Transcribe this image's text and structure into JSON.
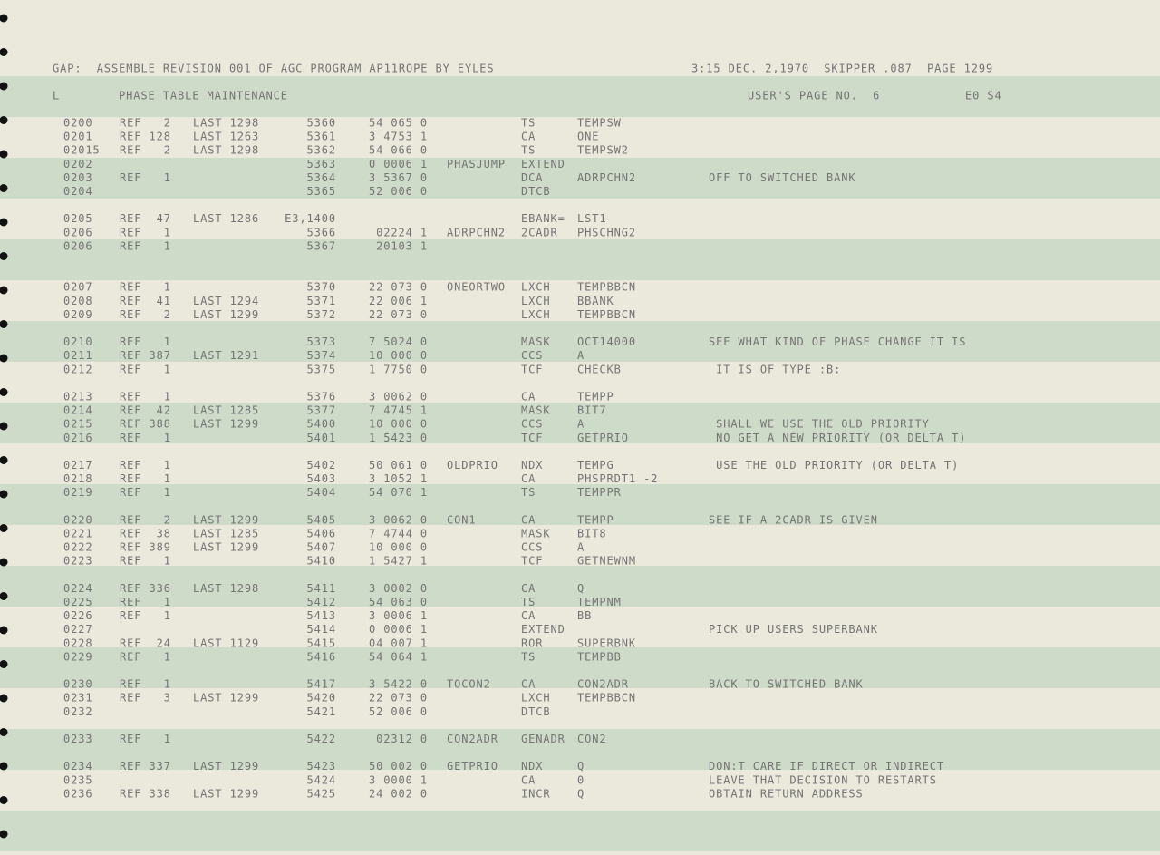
{
  "header": {
    "left": "GAP:  ASSEMBLE REVISION 001 OF AGC PROGRAM AP11ROPE BY EYLES",
    "right": "3:15 DEC. 2,1970  SKIPPER .087  PAGE 1299"
  },
  "subheader": {
    "marker": "L",
    "title": "PHASE TABLE MAINTENANCE",
    "page": "USER'S PAGE NO.  6",
    "code": "E0 S4"
  },
  "blocks": [
    [
      {
        "line": "0200",
        "ref": "REF   2",
        "last": "LAST 1298",
        "addr": "5360",
        "word": "54 065 0",
        "op": "TS",
        "operand": "TEMPSW"
      },
      {
        "line": "0201",
        "ref": "REF 128",
        "last": "LAST 1263",
        "addr": "5361",
        "word": "3 4753 1",
        "op": "CA",
        "operand": "ONE"
      },
      {
        "line": "02015",
        "ref": "REF   2",
        "last": "LAST 1298",
        "addr": "5362",
        "word": "54 066 0",
        "op": "TS",
        "operand": "TEMPSW2"
      },
      {
        "line": "0202",
        "addr": "5363",
        "word": "0 0006 1",
        "label": "PHASJUMP",
        "op": "EXTEND"
      },
      {
        "line": "0203",
        "ref": "REF   1",
        "addr": "5364",
        "word": "3 5367 0",
        "op": "DCA",
        "operand": "ADRPCHN2",
        "comment": "OFF TO SWITCHED BANK"
      },
      {
        "line": "0204",
        "addr": "5365",
        "word": "52 006 0",
        "op": "DTCB"
      }
    ],
    [
      {
        "line": "0205",
        "ref": "REF  47",
        "last": "LAST 1286",
        "addr": "E3,1400",
        "op": "EBANK=",
        "operand": "LST1"
      },
      {
        "line": "0206",
        "ref": "REF   1",
        "addr": "5366",
        "word": "02224 1",
        "label": "ADRPCHN2",
        "op": "2CADR",
        "operand": "PHSCHNG2"
      },
      {
        "line": "0206",
        "ref": "REF   1",
        "addr": "5367",
        "word": "20103 1"
      }
    ],
    [
      {
        "line": "0207",
        "ref": "REF   1",
        "addr": "5370",
        "word": "22 073 0",
        "label": "ONEORTWO",
        "op": "LXCH",
        "operand": "TEMPBBCN"
      },
      {
        "line": "0208",
        "ref": "REF  41",
        "last": "LAST 1294",
        "addr": "5371",
        "word": "22 006 1",
        "op": "LXCH",
        "operand": "BBANK"
      },
      {
        "line": "0209",
        "ref": "REF   2",
        "last": "LAST 1299",
        "addr": "5372",
        "word": "22 073 0",
        "op": "LXCH",
        "operand": "TEMPBBCN"
      }
    ],
    [
      {
        "line": "0210",
        "ref": "REF   1",
        "addr": "5373",
        "word": "7 5024 0",
        "op": "MASK",
        "operand": "OCT14000",
        "comment": "SEE WHAT KIND OF PHASE CHANGE IT IS"
      },
      {
        "line": "0211",
        "ref": "REF 387",
        "last": "LAST 1291",
        "addr": "5374",
        "word": "10 000 0",
        "op": "CCS",
        "operand": "A"
      },
      {
        "line": "0212",
        "ref": "REF   1",
        "addr": "5375",
        "word": "1 7750 0",
        "op": "TCF",
        "operand": "CHECKB",
        "comment": " IT IS OF TYPE :B:"
      }
    ],
    [
      {
        "line": "0213",
        "ref": "REF   1",
        "addr": "5376",
        "word": "3 0062 0",
        "op": "CA",
        "operand": "TEMPP"
      },
      {
        "line": "0214",
        "ref": "REF  42",
        "last": "LAST 1285",
        "addr": "5377",
        "word": "7 4745 1",
        "op": "MASK",
        "operand": "BIT7"
      },
      {
        "line": "0215",
        "ref": "REF 388",
        "last": "LAST 1299",
        "addr": "5400",
        "word": "10 000 0",
        "op": "CCS",
        "operand": "A",
        "comment": " SHALL WE USE THE OLD PRIORITY"
      },
      {
        "line": "0216",
        "ref": "REF   1",
        "addr": "5401",
        "word": "1 5423 0",
        "op": "TCF",
        "operand": "GETPRIO",
        "comment": " NO GET A NEW PRIORITY (OR DELTA T)"
      }
    ],
    [
      {
        "line": "0217",
        "ref": "REF   1",
        "addr": "5402",
        "word": "50 061 0",
        "label": "OLDPRIO",
        "op": "NDX",
        "operand": "TEMPG",
        "comment": " USE THE OLD PRIORITY (OR DELTA T)"
      },
      {
        "line": "0218",
        "ref": "REF   1",
        "addr": "5403",
        "word": "3 1052 1",
        "op": "CA",
        "operand": "PHSPRDT1 -2"
      },
      {
        "line": "0219",
        "ref": "REF   1",
        "addr": "5404",
        "word": "54 070 1",
        "op": "TS",
        "operand": "TEMPPR"
      }
    ],
    [
      {
        "line": "0220",
        "ref": "REF   2",
        "last": "LAST 1299",
        "addr": "5405",
        "word": "3 0062 0",
        "label": "CON1",
        "op": "CA",
        "operand": "TEMPP",
        "comment": "SEE IF A 2CADR IS GIVEN"
      },
      {
        "line": "0221",
        "ref": "REF  38",
        "last": "LAST 1285",
        "addr": "5406",
        "word": "7 4744 0",
        "op": "MASK",
        "operand": "BIT8"
      },
      {
        "line": "0222",
        "ref": "REF 389",
        "last": "LAST 1299",
        "addr": "5407",
        "word": "10 000 0",
        "op": "CCS",
        "operand": "A"
      },
      {
        "line": "0223",
        "ref": "REF   1",
        "addr": "5410",
        "word": "1 5427 1",
        "op": "TCF",
        "operand": "GETNEWNM"
      }
    ],
    [
      {
        "line": "0224",
        "ref": "REF 336",
        "last": "LAST 1298",
        "addr": "5411",
        "word": "3 0002 0",
        "op": "CA",
        "operand": "Q"
      },
      {
        "line": "0225",
        "ref": "REF   1",
        "addr": "5412",
        "word": "54 063 0",
        "op": "TS",
        "operand": "TEMPNM"
      },
      {
        "line": "0226",
        "ref": "REF   1",
        "addr": "5413",
        "word": "3 0006 1",
        "op": "CA",
        "operand": "BB"
      },
      {
        "line": "0227",
        "addr": "5414",
        "word": "0 0006 1",
        "op": "EXTEND",
        "comment": "PICK UP USERS SUPERBANK"
      },
      {
        "line": "0228",
        "ref": "REF  24",
        "last": "LAST 1129",
        "addr": "5415",
        "word": "04 007 1",
        "op": "ROR",
        "operand": "SUPERBNK"
      },
      {
        "line": "0229",
        "ref": "REF   1",
        "addr": "5416",
        "word": "54 064 1",
        "op": "TS",
        "operand": "TEMPBB"
      }
    ],
    [
      {
        "line": "0230",
        "ref": "REF   1",
        "addr": "5417",
        "word": "3 5422 0",
        "label": "TOCON2",
        "op": "CA",
        "operand": "CON2ADR",
        "comment": "BACK TO SWITCHED BANK"
      },
      {
        "line": "0231",
        "ref": "REF   3",
        "last": "LAST 1299",
        "addr": "5420",
        "word": "22 073 0",
        "op": "LXCH",
        "operand": "TEMPBBCN"
      },
      {
        "line": "0232",
        "addr": "5421",
        "word": "52 006 0",
        "op": "DTCB"
      }
    ],
    [
      {
        "line": "0233",
        "ref": "REF   1",
        "addr": "5422",
        "word": "02312 0",
        "label": "CON2ADR",
        "op": "GENADR",
        "operand": "CON2"
      }
    ],
    [
      {
        "line": "0234",
        "ref": "REF 337",
        "last": "LAST 1299",
        "addr": "5423",
        "word": "50 002 0",
        "label": "GETPRIO",
        "op": "NDX",
        "operand": "Q",
        "comment": "DON:T CARE IF DIRECT OR INDIRECT"
      },
      {
        "line": "0235",
        "addr": "5424",
        "word": "3 0000 1",
        "op": "CA",
        "operand": "0",
        "comment": "LEAVE THAT DECISION TO RESTARTS"
      },
      {
        "line": "0236",
        "ref": "REF 338",
        "last": "LAST 1299",
        "addr": "5425",
        "word": "24 002 0",
        "op": "INCR",
        "operand": "Q",
        "comment": "OBTAIN RETURN ADDRESS"
      }
    ]
  ]
}
